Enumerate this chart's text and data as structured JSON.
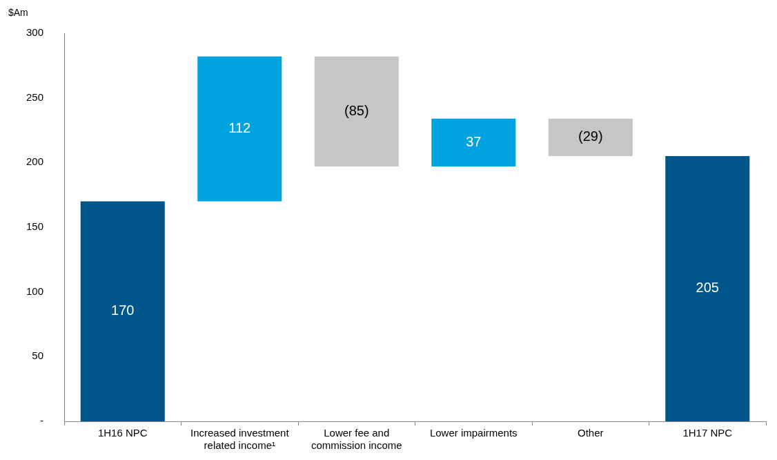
{
  "chart_data": {
    "type": "bar",
    "ylabel": "$Am",
    "categories": [
      "1H16 NPC",
      "Increased investment related income¹",
      "Lower fee and commission income",
      "Lower impairments",
      "Other",
      "1H17 NPC"
    ],
    "values": [
      170,
      112,
      -85,
      37,
      -29,
      205
    ],
    "base": [
      0,
      170,
      282,
      197,
      234,
      0
    ],
    "colors": [
      "#00558b",
      "#00a3e0",
      "#c6c6c7",
      "#00a3e0",
      "#c6c6c7",
      "#00558b"
    ],
    "value_labels": [
      "170",
      "112",
      "(85)",
      "37",
      "(29)",
      "205"
    ],
    "ylim": [
      0,
      300
    ],
    "yticks": [
      {
        "value": 0,
        "label": "-"
      },
      50,
      100,
      150,
      200,
      250,
      300
    ],
    "grid": false,
    "legend": false
  }
}
